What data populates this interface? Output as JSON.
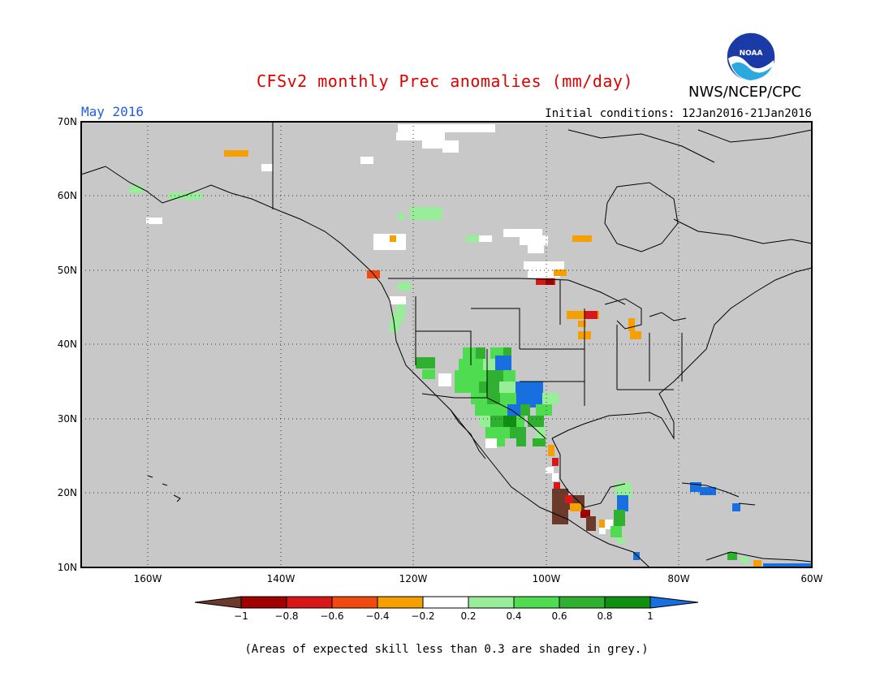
{
  "header": {
    "title": "CFSv2 monthly Prec anomalies (mm/day)",
    "month": "May 2016",
    "initial_conditions": "Initial conditions: 12Jan2016-21Jan2016",
    "agency": "NWS/NCEP/CPC",
    "logo_text": "NOAA"
  },
  "map": {
    "lon_range": [
      -170,
      -60
    ],
    "lat_range": [
      10,
      70
    ],
    "lat_labels": [
      "70N",
      "60N",
      "50N",
      "40N",
      "30N",
      "20N",
      "10N"
    ],
    "lon_labels": [
      "160W",
      "140W",
      "120W",
      "100W",
      "80W",
      "60W"
    ],
    "low_skill_color": "#c8c8c8",
    "coast_color": "#000000"
  },
  "colorbar": {
    "ticks": [
      "−1",
      "−0.8",
      "−0.6",
      "−0.4",
      "−0.2",
      "0.2",
      "0.4",
      "0.6",
      "0.8",
      "1"
    ],
    "colors": [
      "#6b3a2a",
      "#a00000",
      "#d81818",
      "#f04a10",
      "#f5a000",
      "#ffffff",
      "#98ee98",
      "#50dc50",
      "#30b030",
      "#109010",
      "#1870e0"
    ]
  },
  "caption": "(Areas of expected skill less than 0.3 are shaded in grey.)"
}
